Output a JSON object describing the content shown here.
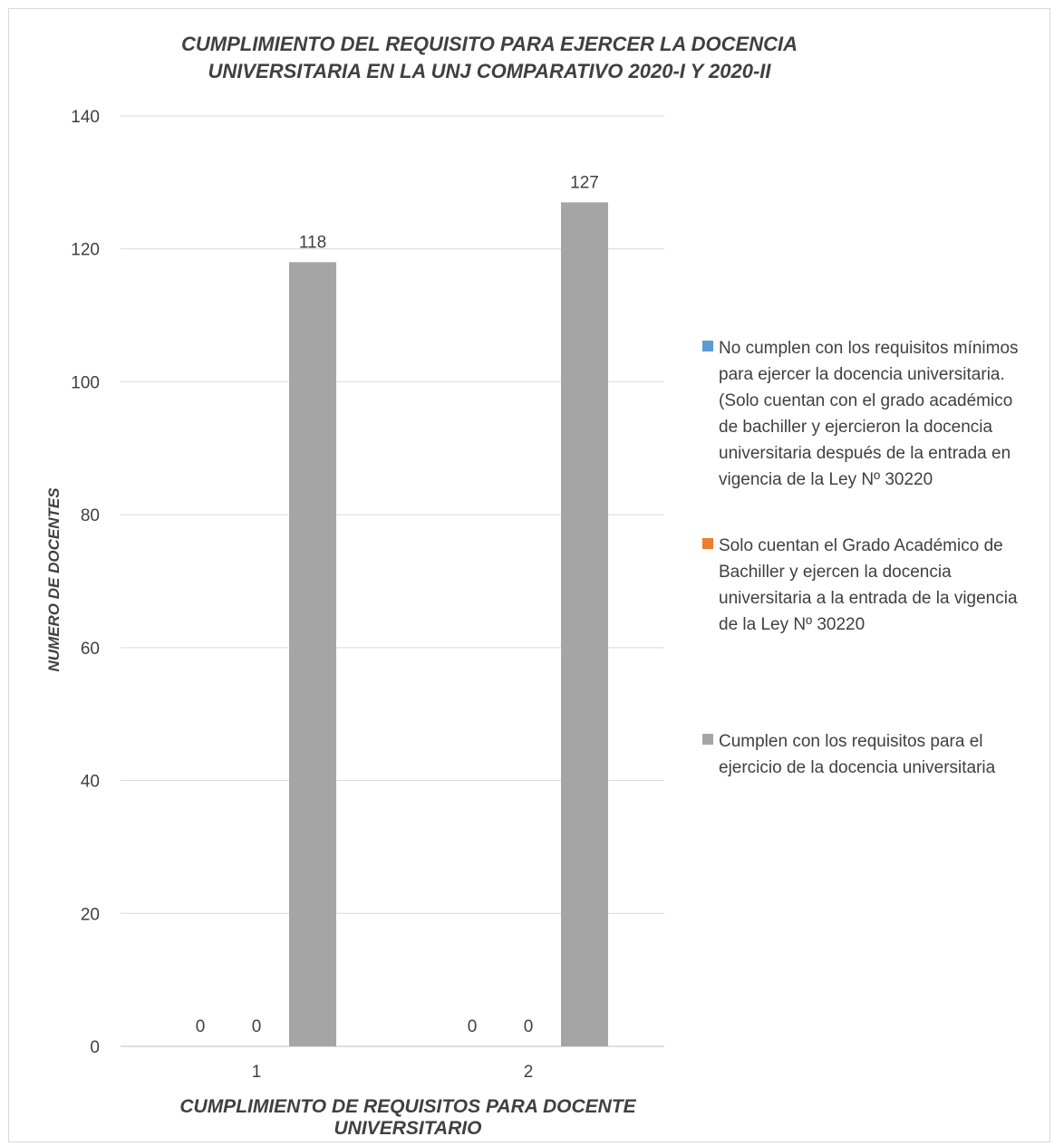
{
  "chart_data": {
    "type": "bar",
    "title": "CUMPLIMIENTO DEL REQUISITO PARA EJERCER LA DOCENCIA UNIVERSITARIA EN LA UNJ COMPARATIVO 2020-I Y 2020-II",
    "xlabel": "CUMPLIMIENTO DE REQUISITOS PARA DOCENTE UNIVERSITARIO",
    "ylabel": "NUMERO DE DOCENTES",
    "categories": [
      "1",
      "2"
    ],
    "ylim": [
      0,
      140
    ],
    "yticks": [
      0,
      20,
      40,
      60,
      80,
      100,
      120,
      140
    ],
    "grid": true,
    "legend_position": "right",
    "series": [
      {
        "name": "No cumplen con los requisitos mínimos para ejercer la docencia universitaria. (Solo cuentan con el grado académico de bachiller y ejercieron la docencia universitaria después de la entrada en vigencia de la Ley Nº 30220",
        "values": [
          0,
          0
        ],
        "color": "#5b9bd5"
      },
      {
        "name": "Solo cuentan el Grado Académico de Bachiller y ejercen la docencia universitaria a la entrada de la vigencia de la Ley Nº 30220",
        "values": [
          0,
          0
        ],
        "color": "#ed7d31"
      },
      {
        "name": "Cumplen con los requisitos para el ejercicio de la docencia universitaria",
        "values": [
          118,
          127
        ],
        "color": "#a5a5a5"
      }
    ]
  }
}
